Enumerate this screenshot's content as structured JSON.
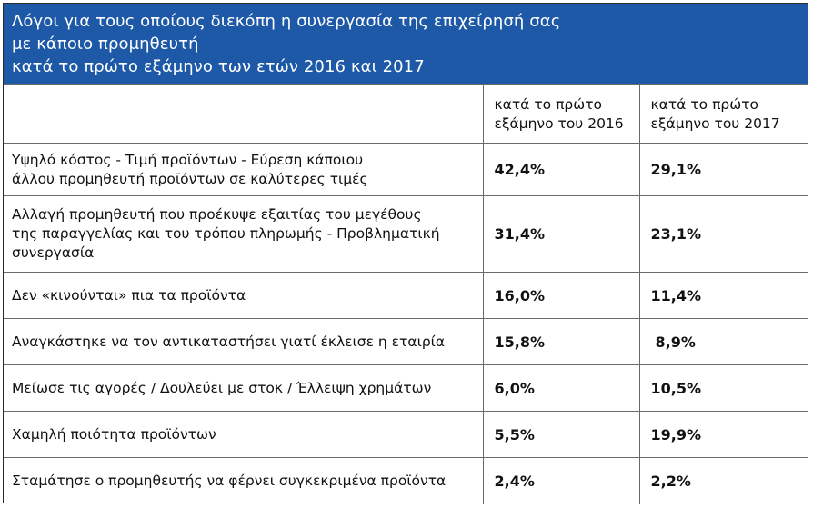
{
  "title": {
    "lines": [
      "Λόγοι για τους οποίους διεκόπη η συνεργασία της επιχείρησή σας",
      "με κάποιο προμηθευτή",
      "κατά το πρώτο εξάμηνο των ετών 2016 και 2017"
    ]
  },
  "header": {
    "col_2016": [
      "κατά το πρώτο",
      "εξάμηνο του 2016"
    ],
    "col_2017": [
      "κατά το πρώτο",
      "εξάμηνο του 2017"
    ]
  },
  "rows": [
    {
      "label": [
        "Υψηλό κόστος - Τιμή προϊόντων - Εύρεση κάποιου",
        "άλλου προμηθευτή προϊόντων σε καλύτερες τιμές"
      ],
      "v2016": "42,4%",
      "v2017": "29,1%"
    },
    {
      "label": [
        "Αλλαγή προμηθευτή που προέκυψε εξαιτίας του μεγέθους",
        "της παραγγελίας και του τρόπου πληρωμής - Προβληματική",
        "συνεργασία"
      ],
      "v2016": "31,4%",
      "v2017": "23,1%"
    },
    {
      "label": [
        "Δεν «κινούνται» πια τα προϊόντα"
      ],
      "v2016": "16,0%",
      "v2017": "11,4%"
    },
    {
      "label": [
        "Αναγκάστηκε να τον αντικαταστήσει γιατί έκλεισε η εταιρία"
      ],
      "v2016": "15,8%",
      "v2017": "8,9%"
    },
    {
      "label": [
        "Μείωσε τις αγορές / Δουλεύει με στοκ / Έλλειψη χρημάτων"
      ],
      "v2016": "6,0%",
      "v2017": "10,5%"
    },
    {
      "label": [
        "Χαμηλή ποιότητα προϊόντων"
      ],
      "v2016": "5,5%",
      "v2017": "19,9%"
    },
    {
      "label": [
        "Σταμάτησε ο προμηθευτής να φέρνει συγκεκριμένα προϊόντα"
      ],
      "v2016": "2,4%",
      "v2017": "2,2%"
    }
  ],
  "colors": {
    "title_background": "#1e59a8",
    "title_text": "#ffffff",
    "grid": "#6a6a6a"
  }
}
